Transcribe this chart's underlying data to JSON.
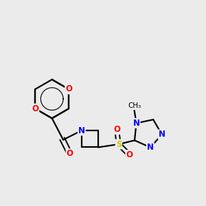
{
  "bg_color": "#ebebeb",
  "bond_color": "#000000",
  "bond_lw": 1.6,
  "atom_colors": {
    "O": "#ff0000",
    "N": "#0000ff",
    "S": "#cccc00",
    "C": "#000000"
  },
  "font_size": 8.5
}
